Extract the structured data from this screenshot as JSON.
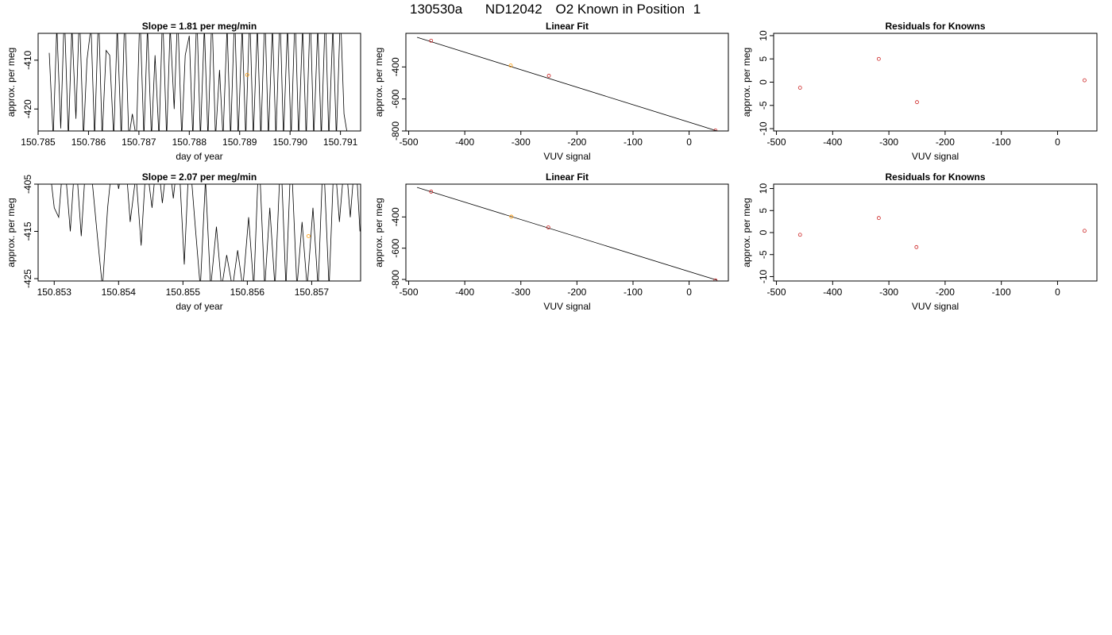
{
  "header": {
    "run_id": "130530a",
    "tank_id": "ND12042",
    "description": "O2 Known in Position",
    "position": "1"
  },
  "colors": {
    "line": "#000000",
    "orange_point": "#ff9900",
    "red_point": "#cc2020"
  },
  "chart_data": [
    {
      "type": "line",
      "title": "Slope =  1.81  per meg/min",
      "xlabel": "day of year",
      "ylabel": "approx. per meg",
      "xlim": [
        150.785,
        150.7914
      ],
      "ylim": [
        -424.5,
        -404.5
      ],
      "xticks": [
        150.785,
        150.786,
        150.787,
        150.788,
        150.789,
        150.79,
        150.791
      ],
      "xtick_labels": [
        "150.785",
        "150.786",
        "150.787",
        "150.788",
        "150.789",
        "150.790",
        "150.791"
      ],
      "yticks": [
        -420,
        -410
      ],
      "ytick_labels": [
        "-420",
        "-410"
      ],
      "series": [
        {
          "values": [
            [
              150.78522,
              -408.5
            ],
            [
              150.7853,
              -426
            ],
            [
              150.78537,
              -403
            ],
            [
              150.78545,
              -424
            ],
            [
              150.78552,
              -400
            ],
            [
              150.7856,
              -426
            ],
            [
              150.78567,
              -403
            ],
            [
              150.78575,
              -422
            ],
            [
              150.78582,
              -400
            ],
            [
              150.7859,
              -426
            ],
            [
              150.78597,
              -410
            ],
            [
              150.78605,
              -403
            ],
            [
              150.78612,
              -426
            ],
            [
              150.7862,
              -400
            ],
            [
              150.78627,
              -426
            ],
            [
              150.78635,
              -408
            ],
            [
              150.78642,
              -409
            ],
            [
              150.7865,
              -426
            ],
            [
              150.78657,
              -403
            ],
            [
              150.78665,
              -426
            ],
            [
              150.78672,
              -400
            ],
            [
              150.7868,
              -426
            ],
            [
              150.78687,
              -421
            ],
            [
              150.78695,
              -426
            ],
            [
              150.78702,
              -400
            ],
            [
              150.7871,
              -426
            ],
            [
              150.78717,
              -403
            ],
            [
              150.78725,
              -426
            ],
            [
              150.78732,
              -409
            ],
            [
              150.7874,
              -426
            ],
            [
              150.78747,
              -400
            ],
            [
              150.78755,
              -426
            ],
            [
              150.78762,
              -403
            ],
            [
              150.7877,
              -420
            ],
            [
              150.78777,
              -400
            ],
            [
              150.78785,
              -426
            ],
            [
              150.78792,
              -409
            ],
            [
              150.788,
              -405
            ],
            [
              150.78807,
              -426
            ],
            [
              150.78815,
              -400
            ],
            [
              150.78822,
              -426
            ],
            [
              150.7883,
              -403
            ],
            [
              150.78837,
              -426
            ],
            [
              150.78845,
              -400
            ],
            [
              150.78852,
              -426
            ],
            [
              150.7886,
              -412
            ],
            [
              150.78867,
              -426
            ],
            [
              150.78875,
              -403
            ],
            [
              150.78882,
              -426
            ],
            [
              150.7889,
              -400
            ],
            [
              150.78897,
              -426
            ],
            [
              150.78905,
              -403
            ],
            [
              150.78912,
              -426
            ],
            [
              150.7892,
              -400
            ],
            [
              150.78927,
              -426
            ],
            [
              150.78935,
              -403
            ],
            [
              150.78942,
              -426
            ],
            [
              150.7895,
              -400
            ],
            [
              150.78957,
              -426
            ],
            [
              150.78965,
              -403
            ],
            [
              150.78972,
              -426
            ],
            [
              150.7898,
              -400
            ],
            [
              150.78987,
              -426
            ],
            [
              150.78995,
              -403
            ],
            [
              150.79002,
              -426
            ],
            [
              150.7901,
              -400
            ],
            [
              150.79017,
              -426
            ],
            [
              150.79025,
              -403
            ],
            [
              150.79032,
              -426
            ],
            [
              150.7904,
              -400
            ],
            [
              150.79047,
              -426
            ],
            [
              150.79055,
              -403
            ],
            [
              150.79062,
              -426
            ],
            [
              150.7907,
              -400
            ],
            [
              150.79077,
              -426
            ],
            [
              150.79085,
              -403
            ],
            [
              150.79092,
              -426
            ],
            [
              150.791,
              -400
            ],
            [
              150.79107,
              -421
            ],
            [
              150.79115,
              -426
            ]
          ]
        }
      ],
      "highlight_point": {
        "x": 150.78915,
        "y": -413
      }
    },
    {
      "type": "scatter",
      "title": "Linear Fit",
      "xlabel": "VUV signal",
      "ylabel": "approx. per meg",
      "xlim": [
        -505,
        70
      ],
      "ylim": [
        -800,
        -190
      ],
      "xticks": [
        -500,
        -400,
        -300,
        -200,
        -100,
        0
      ],
      "xtick_labels": [
        "-500",
        "-400",
        "-300",
        "-200",
        "-100",
        "0"
      ],
      "yticks": [
        -800,
        -600,
        -400
      ],
      "ytick_labels": [
        "-800",
        "-600",
        "-400"
      ],
      "fit_line": {
        "x": [
          -485,
          50
        ],
        "y": [
          -215,
          -800
        ]
      },
      "points": [
        [
          -460,
          -236
        ],
        [
          -318,
          -391
        ],
        [
          -250,
          -455
        ],
        [
          47,
          -797
        ]
      ],
      "point_colors": [
        "red",
        "orange",
        "red",
        "red"
      ]
    },
    {
      "type": "scatter",
      "title": "Residuals for Knowns",
      "xlabel": "VUV signal",
      "ylabel": "approx. per meg",
      "xlim": [
        -505,
        70
      ],
      "ylim": [
        -10.5,
        10.5
      ],
      "xticks": [
        -500,
        -400,
        -300,
        -200,
        -100,
        0
      ],
      "xtick_labels": [
        "-500",
        "-400",
        "-300",
        "-200",
        "-100",
        "0"
      ],
      "yticks": [
        -10,
        -5,
        0,
        5,
        10
      ],
      "ytick_labels": [
        "-10",
        "-5",
        "0",
        "5",
        "10"
      ],
      "points": [
        [
          -458,
          -1.2
        ],
        [
          -318,
          5.0
        ],
        [
          -250,
          -4.3
        ],
        [
          48,
          0.4
        ]
      ],
      "point_colors": [
        "red",
        "red",
        "red",
        "red"
      ]
    },
    {
      "type": "line",
      "title": "Slope =  2.07  per meg/min",
      "xlabel": "day of year",
      "ylabel": "approx. per meg",
      "xlim": [
        150.85275,
        150.85776
      ],
      "ylim": [
        -425.5,
        -405
      ],
      "xticks": [
        150.853,
        150.854,
        150.855,
        150.856,
        150.857
      ],
      "xtick_labels": [
        "150.853",
        "150.854",
        "150.855",
        "150.856",
        "150.857"
      ],
      "yticks": [
        -425,
        -415,
        -405
      ],
      "ytick_labels": [
        "-425",
        "-415",
        "-405"
      ],
      "series": [
        {
          "values": [
            [
              150.8529,
              -398
            ],
            [
              150.853,
              -410
            ],
            [
              150.85307,
              -412
            ],
            [
              150.85315,
              -398
            ],
            [
              150.85325,
              -415
            ],
            [
              150.85333,
              -398
            ],
            [
              150.85342,
              -416
            ],
            [
              150.8535,
              -398
            ],
            [
              150.85358,
              -403
            ],
            [
              150.85367,
              -416
            ],
            [
              150.85375,
              -427
            ],
            [
              150.85383,
              -410
            ],
            [
              150.85392,
              -398
            ],
            [
              150.854,
              -406
            ],
            [
              150.8541,
              -398
            ],
            [
              150.85418,
              -413
            ],
            [
              150.85427,
              -403
            ],
            [
              150.85435,
              -418
            ],
            [
              150.85443,
              -400
            ],
            [
              150.85452,
              -410
            ],
            [
              150.8546,
              -398
            ],
            [
              150.85468,
              -409
            ],
            [
              150.85477,
              -398
            ],
            [
              150.85485,
              -408
            ],
            [
              150.85493,
              -398
            ],
            [
              150.85502,
              -422
            ],
            [
              150.8551,
              -398
            ],
            [
              150.85518,
              -412
            ],
            [
              150.85527,
              -427
            ],
            [
              150.85535,
              -404
            ],
            [
              150.85543,
              -427
            ],
            [
              150.85552,
              -414
            ],
            [
              150.8556,
              -427
            ],
            [
              150.85568,
              -420
            ],
            [
              150.85577,
              -427
            ],
            [
              150.85585,
              -419
            ],
            [
              150.85593,
              -427
            ],
            [
              150.85602,
              -412
            ],
            [
              150.8561,
              -427
            ],
            [
              150.85618,
              -398
            ],
            [
              150.85627,
              -427
            ],
            [
              150.85635,
              -410
            ],
            [
              150.85643,
              -427
            ],
            [
              150.85652,
              -398
            ],
            [
              150.8566,
              -427
            ],
            [
              150.85668,
              -398
            ],
            [
              150.85677,
              -427
            ],
            [
              150.85685,
              -413
            ],
            [
              150.85693,
              -427
            ],
            [
              150.85702,
              -410
            ],
            [
              150.8571,
              -427
            ],
            [
              150.85718,
              -398
            ],
            [
              150.85727,
              -427
            ],
            [
              150.85735,
              -398
            ],
            [
              150.85743,
              -413
            ],
            [
              150.85752,
              -398
            ],
            [
              150.8576,
              -412
            ],
            [
              150.85768,
              -398
            ],
            [
              150.85775,
              -415
            ]
          ]
        }
      ],
      "highlight_point": {
        "x": 150.85695,
        "y": -416
      }
    },
    {
      "type": "scatter",
      "title": "Linear Fit",
      "xlabel": "VUV signal",
      "ylabel": "approx. per meg",
      "xlim": [
        -505,
        70
      ],
      "ylim": [
        -810,
        -190
      ],
      "xticks": [
        -500,
        -400,
        -300,
        -200,
        -100,
        0
      ],
      "xtick_labels": [
        "-500",
        "-400",
        "-300",
        "-200",
        "-100",
        "0"
      ],
      "yticks": [
        -800,
        -600,
        -400
      ],
      "ytick_labels": [
        "-800",
        "-600",
        "-400"
      ],
      "fit_line": {
        "x": [
          -485,
          50
        ],
        "y": [
          -211,
          -805
        ]
      },
      "points": [
        [
          -460,
          -238
        ],
        [
          -317,
          -398
        ],
        [
          -251,
          -467
        ],
        [
          47,
          -806
        ]
      ],
      "point_colors": [
        "red",
        "orange",
        "red",
        "red"
      ]
    },
    {
      "type": "scatter",
      "title": "Residuals for Knowns",
      "xlabel": "VUV signal",
      "ylabel": "approx. per meg",
      "xlim": [
        -505,
        70
      ],
      "ylim": [
        -11,
        11
      ],
      "xticks": [
        -500,
        -400,
        -300,
        -200,
        -100,
        0
      ],
      "xtick_labels": [
        "-500",
        "-400",
        "-300",
        "-200",
        "-100",
        "0"
      ],
      "yticks": [
        -10,
        -5,
        0,
        5,
        10
      ],
      "ytick_labels": [
        "-10",
        "-5",
        "0",
        "5",
        "10"
      ],
      "points": [
        [
          -458,
          -0.5
        ],
        [
          -318,
          3.3
        ],
        [
          -251,
          -3.3
        ],
        [
          48,
          0.4
        ]
      ],
      "point_colors": [
        "red",
        "red",
        "red",
        "red"
      ]
    }
  ]
}
